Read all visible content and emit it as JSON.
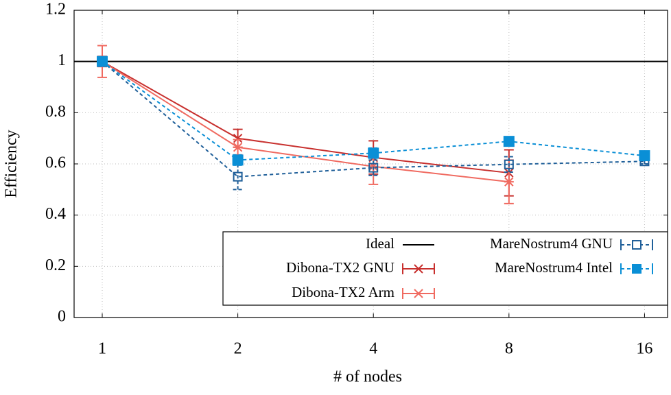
{
  "chart_data": {
    "type": "line",
    "xlabel": "# of nodes",
    "ylabel": "Efficiency",
    "x": [
      1,
      2,
      4,
      8,
      16
    ],
    "xscale": "log",
    "xlim": [
      0.866,
      18
    ],
    "xticks": [
      1,
      2,
      4,
      8,
      16
    ],
    "ylim": [
      0,
      1.2
    ],
    "yticks": [
      0,
      0.2,
      0.4,
      0.6,
      0.8,
      1,
      {
        "value": 1.2,
        "label": "1.2"
      }
    ],
    "grid": true,
    "legend": "lower right",
    "ideal": {
      "name": "Ideal",
      "value": 1,
      "color": "#000000"
    },
    "series": [
      {
        "name": "Dibona-TX2 GNU",
        "color": "#c8302e",
        "marker": "x",
        "dash": false,
        "values": [
          1,
          0.7,
          0.625,
          0.565,
          null
        ],
        "errors": [
          0.02,
          0.035,
          0.065,
          0.09,
          null
        ]
      },
      {
        "name": "Dibona-TX2 Arm",
        "color": "#f06a60",
        "marker": "star",
        "dash": false,
        "values": [
          1,
          0.665,
          0.59,
          0.53,
          null
        ],
        "errors": [
          0.062,
          0.03,
          0.07,
          0.085,
          null
        ]
      },
      {
        "name": "MareNostrum4 GNU",
        "color": "#1f5f99",
        "marker": "open-square",
        "dash": true,
        "values": [
          1,
          0.55,
          0.585,
          0.598,
          0.61
        ],
        "errors": [
          0.01,
          0.05,
          0.03,
          0.03,
          0.01
        ]
      },
      {
        "name": "MareNostrum4 Intel",
        "color": "#0a8fd6",
        "marker": "square",
        "dash": true,
        "values": [
          1,
          0.615,
          0.642,
          0.688,
          0.632
        ],
        "errors": [
          0.01,
          0.02,
          0.02,
          0.01,
          0.01
        ]
      }
    ]
  }
}
